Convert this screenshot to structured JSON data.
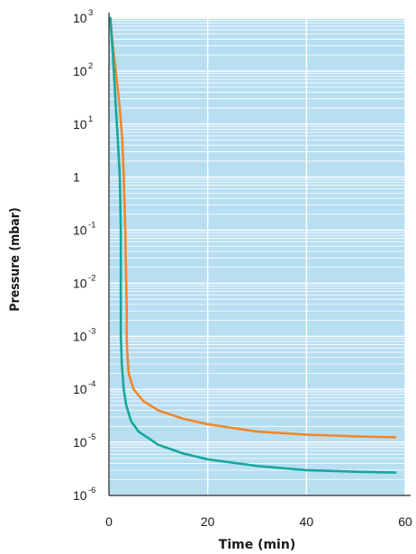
{
  "chart_data": {
    "type": "line",
    "xlabel": "Time (min)",
    "ylabel": "Pressure (mbar)",
    "xlim": [
      0,
      60
    ],
    "ylim_log10": [
      -6,
      3
    ],
    "y_scale": "log",
    "x_ticks": [
      {
        "value": 0,
        "label": "0"
      },
      {
        "value": 20,
        "label": "20"
      },
      {
        "value": 40,
        "label": "40"
      },
      {
        "value": 60,
        "label": "60"
      }
    ],
    "y_ticks": [
      {
        "exp": 3,
        "base": "10",
        "sup": "3"
      },
      {
        "exp": 2,
        "base": "10",
        "sup": "2"
      },
      {
        "exp": 1,
        "base": "10",
        "sup": "1"
      },
      {
        "exp": 0,
        "base": "1",
        "sup": ""
      },
      {
        "exp": -1,
        "base": "10",
        "sup": "-1"
      },
      {
        "exp": -2,
        "base": "10",
        "sup": "-2"
      },
      {
        "exp": -3,
        "base": "10",
        "sup": "-3"
      },
      {
        "exp": -4,
        "base": "10",
        "sup": "-4"
      },
      {
        "exp": -5,
        "base": "10",
        "sup": "-5"
      },
      {
        "exp": -6,
        "base": "10",
        "sup": "-6"
      }
    ],
    "grid": true,
    "colors": {
      "background": "#b8def2",
      "grid": "#ffffff",
      "axis": "#222222"
    },
    "series": [
      {
        "color": "#f0872a",
        "points": [
          [
            0.2,
            1000
          ],
          [
            0.8,
            300
          ],
          [
            1.5,
            80
          ],
          [
            2.2,
            20
          ],
          [
            2.7,
            5
          ],
          [
            3.0,
            1
          ],
          [
            3.3,
            0.1
          ],
          [
            3.5,
            0.01
          ],
          [
            3.6,
            0.003
          ],
          [
            3.6,
            0.001
          ],
          [
            3.7,
            0.0005
          ],
          [
            4.0,
            0.0002
          ],
          [
            5.0,
            0.0001
          ],
          [
            7.0,
            6e-05
          ],
          [
            10.0,
            4e-05
          ],
          [
            15.0,
            2.8e-05
          ],
          [
            20.0,
            2.2e-05
          ],
          [
            30.0,
            1.6e-05
          ],
          [
            40.0,
            1.4e-05
          ],
          [
            50.0,
            1.3e-05
          ],
          [
            58.0,
            1.25e-05
          ]
        ]
      },
      {
        "color": "#14a89a",
        "points": [
          [
            0.3,
            1000
          ],
          [
            0.8,
            200
          ],
          [
            1.3,
            30
          ],
          [
            1.8,
            5
          ],
          [
            2.2,
            1
          ],
          [
            2.4,
            0.1
          ],
          [
            2.4,
            0.01
          ],
          [
            2.4,
            0.001
          ],
          [
            2.6,
            0.0003
          ],
          [
            3.0,
            0.0001
          ],
          [
            3.5,
            5e-05
          ],
          [
            4.5,
            2.5e-05
          ],
          [
            6.0,
            1.6e-05
          ],
          [
            10.0,
            9e-06
          ],
          [
            15.0,
            6.2e-06
          ],
          [
            20.0,
            4.8e-06
          ],
          [
            30.0,
            3.6e-06
          ],
          [
            40.0,
            3e-06
          ],
          [
            50.0,
            2.8e-06
          ],
          [
            58.0,
            2.7e-06
          ]
        ]
      }
    ]
  }
}
